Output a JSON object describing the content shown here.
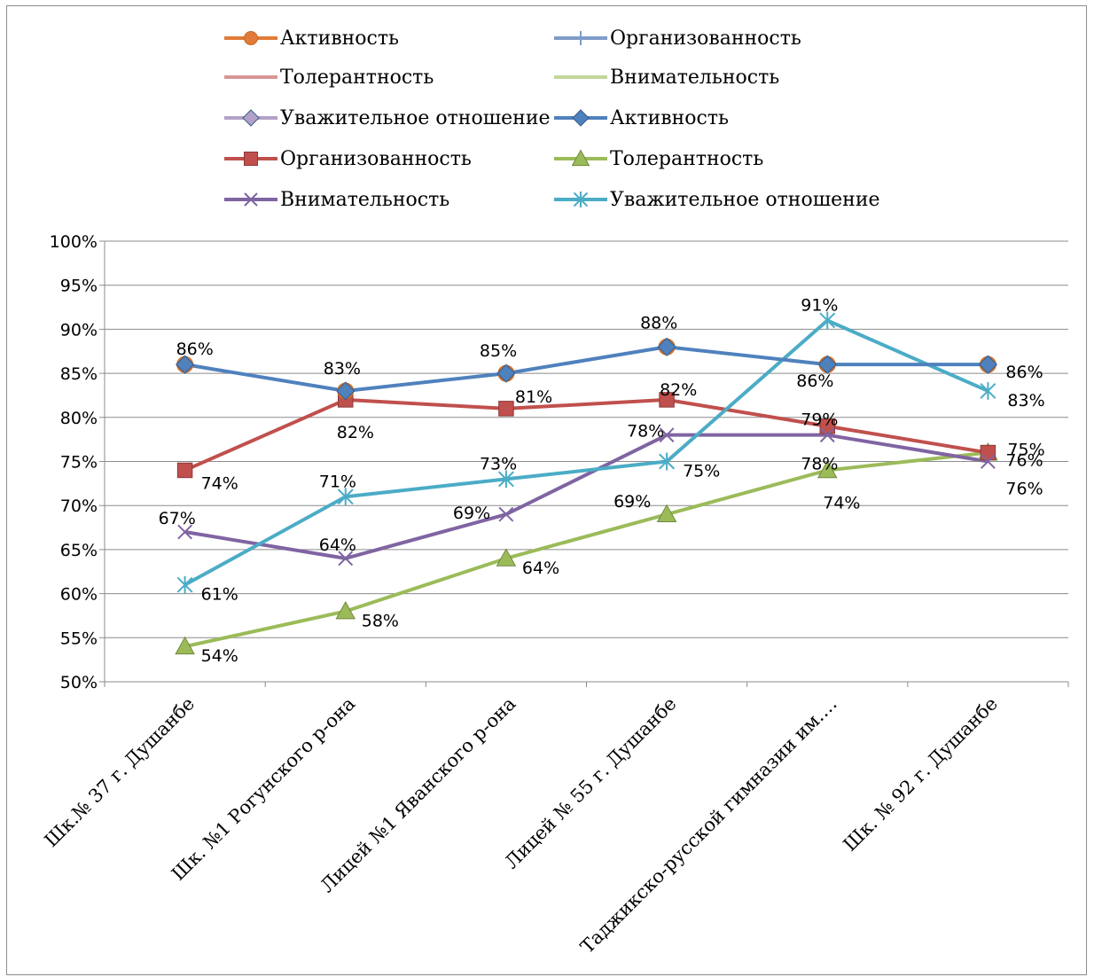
{
  "chart_data": {
    "type": "line",
    "categories": [
      "Шк.№ 37 г. Душанбе",
      "Шк. №1  Рогунского р-она",
      "Лицей №1 Яванского р-она",
      "Лицей № 55 г. Душанбе",
      "Таджикско-русской гимназии им.…",
      "Шк. № 92 г. Душанбе"
    ],
    "ylim": [
      0.5,
      1.0
    ],
    "yticks": [
      "50%",
      "55%",
      "60%",
      "65%",
      "70%",
      "75%",
      "80%",
      "85%",
      "90%",
      "95%",
      "100%"
    ],
    "grid": true,
    "legend_placement": "top",
    "legend": [
      {
        "name": "Активность",
        "color": "#E07B39",
        "marker": "circle"
      },
      {
        "name": "Организованность",
        "color": "#7F9CC9",
        "marker": "plus"
      },
      {
        "name": "Толерантность",
        "color": "#D99694",
        "marker": "none"
      },
      {
        "name": "Внимательность",
        "color": "#C3D69B",
        "marker": "none"
      },
      {
        "name": "Уважительное отношение",
        "color": "#B3A2C7",
        "marker": "diamond"
      },
      {
        "name": "Активность",
        "color": "#4F81BD",
        "marker": "diamond"
      },
      {
        "name": "Организованность",
        "color": "#C0504D",
        "marker": "square"
      },
      {
        "name": "Толерантность",
        "color": "#9BBB59",
        "marker": "triangle"
      },
      {
        "name": "Внимательность",
        "color": "#8064A2",
        "marker": "x"
      },
      {
        "name": "Уважительное отношение",
        "color": "#4BACC6",
        "marker": "star"
      }
    ],
    "series": [
      {
        "name": "Активность",
        "color": "#4F81BD",
        "marker": "diamond",
        "values": [
          0.86,
          0.83,
          0.85,
          0.88,
          0.86,
          0.86
        ],
        "labels": [
          "86%",
          "83%",
          "85%",
          "88%",
          "86%",
          "86%"
        ]
      },
      {
        "name": "Организованность",
        "color": "#C0504D",
        "marker": "square",
        "values": [
          0.74,
          0.82,
          0.81,
          0.82,
          0.79,
          0.76
        ],
        "labels": [
          "74%",
          "82%",
          "81%",
          "82%",
          "79%",
          "76%"
        ]
      },
      {
        "name": "Толерантность",
        "color": "#9BBB59",
        "marker": "triangle",
        "values": [
          0.54,
          0.58,
          0.64,
          0.69,
          0.74,
          0.76
        ],
        "labels": [
          "54%",
          "58%",
          "64%",
          "69%",
          "74%",
          "76%"
        ]
      },
      {
        "name": "Внимательность",
        "color": "#8064A2",
        "marker": "x",
        "values": [
          0.67,
          0.64,
          0.69,
          0.78,
          0.78,
          0.75
        ],
        "labels": [
          "67%",
          "64%",
          "69%",
          "78%",
          "78%",
          "75%"
        ]
      },
      {
        "name": "Уважительное отношение",
        "color": "#4BACC6",
        "marker": "star",
        "values": [
          0.61,
          0.71,
          0.73,
          0.75,
          0.91,
          0.83
        ],
        "labels": [
          "61%",
          "71%",
          "73%",
          "75%",
          "91%",
          "83%"
        ]
      }
    ]
  }
}
